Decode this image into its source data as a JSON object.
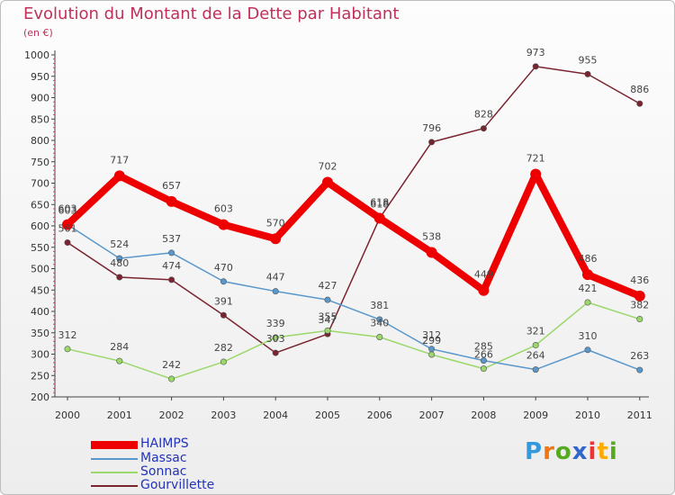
{
  "header": {
    "title": "Evolution du Montant de la Dette par Habitant",
    "unit": "(en €)"
  },
  "chart_data": {
    "type": "line",
    "title": "Evolution du Montant de la Dette par Habitant",
    "ylabel": "(en €)",
    "xlabel": "",
    "categories": [
      "2000",
      "2001",
      "2002",
      "2003",
      "2004",
      "2005",
      "2006",
      "2007",
      "2008",
      "2009",
      "2010",
      "2011"
    ],
    "ylim": [
      200,
      1000
    ],
    "yticks": [
      200,
      250,
      300,
      350,
      400,
      450,
      500,
      550,
      600,
      650,
      700,
      750,
      800,
      850,
      900,
      950,
      1000
    ],
    "grid": false,
    "legend_position": "bottom-left",
    "series": [
      {
        "name": "Gourvillette",
        "color": "#7a2430",
        "values": [
          561,
          480,
          474,
          391,
          303,
          347,
          618,
          796,
          828,
          973,
          955,
          886
        ]
      },
      {
        "name": "Sonnac",
        "color": "#9ad86a",
        "values": [
          312,
          284,
          242,
          282,
          339,
          355,
          340,
          299,
          266,
          321,
          421,
          382
        ]
      },
      {
        "name": "Massac",
        "color": "#5a98cc",
        "values": [
          603,
          524,
          537,
          470,
          447,
          427,
          381,
          312,
          285,
          264,
          310,
          263
        ]
      },
      {
        "name": "HAIMPS",
        "color": "#ee0000",
        "values": [
          603,
          717,
          657,
          603,
          570,
          702,
          618,
          538,
          449,
          721,
          486,
          436
        ]
      }
    ]
  },
  "legend": {
    "items": [
      {
        "name": "HAIMPS",
        "color": "#ee0000"
      },
      {
        "name": "Massac",
        "color": "#5a98cc"
      },
      {
        "name": "Sonnac",
        "color": "#9ad86a"
      },
      {
        "name": "Gourvillette",
        "color": "#7a2430"
      }
    ]
  },
  "logo": {
    "letters": [
      "P",
      "r",
      "o",
      "x",
      "i",
      "t",
      "i"
    ],
    "colors": [
      "#3399dd",
      "#ee7711",
      "#55aa22",
      "#3366cc",
      "#ee3333",
      "#ffaa00",
      "#55aa22"
    ]
  }
}
